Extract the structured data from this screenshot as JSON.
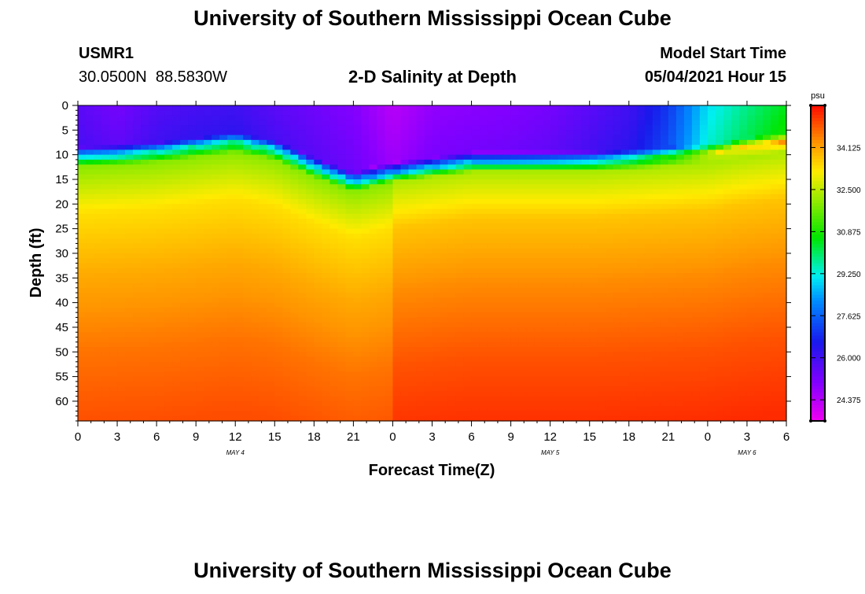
{
  "header": {
    "title": "University of Southern Mississippi Ocean Cube",
    "station_id": "USMR1",
    "station_coords": "30.0500N  88.5830W",
    "plot_title": "2-D Salinity at Depth",
    "model_start_label": "Model Start Time",
    "model_start_value": "05/04/2021 Hour 15"
  },
  "footer": {
    "title": "University of Southern Mississippi Ocean Cube"
  },
  "chart_data": {
    "type": "heatmap",
    "title": "2-D Salinity at Depth",
    "xlabel": "Forecast Time(Z)",
    "ylabel": "Depth (ft)",
    "x_ticks": [
      "0",
      "3",
      "6",
      "9",
      "12",
      "15",
      "18",
      "21",
      "0",
      "3",
      "6",
      "9",
      "12",
      "15",
      "18",
      "21",
      "0",
      "3",
      "6"
    ],
    "x_hours": [
      0,
      3,
      6,
      9,
      12,
      15,
      18,
      21,
      24,
      27,
      30,
      33,
      36,
      39,
      42,
      45,
      48,
      51,
      54
    ],
    "date_labels": [
      {
        "label": "MAY 4",
        "hour": 12
      },
      {
        "label": "MAY 5",
        "hour": 36
      },
      {
        "label": "MAY 6",
        "hour": 51
      }
    ],
    "y_ticks": [
      0,
      5,
      10,
      15,
      20,
      25,
      30,
      35,
      40,
      45,
      50,
      55,
      60
    ],
    "xlim": [
      0,
      54
    ],
    "ylim": [
      64,
      0
    ],
    "colorbar": {
      "unit": "psu",
      "range": [
        23.56,
        35.75
      ],
      "tick_values": [
        24.375,
        26.0,
        27.625,
        29.25,
        30.875,
        32.5,
        34.125
      ],
      "tick_labels": [
        "24.375",
        "26.000",
        "27.625",
        "29.250",
        "30.875",
        "32.500",
        "34.125"
      ]
    },
    "halocline": {
      "hours": [
        0,
        3,
        6,
        9,
        12,
        15,
        18,
        21,
        24,
        27,
        30,
        33,
        36,
        39,
        42,
        45,
        48,
        51,
        54
      ],
      "depth_ft": [
        10,
        9.5,
        9,
        8,
        7,
        8.5,
        12,
        15,
        13,
        12,
        11,
        11,
        11,
        11,
        10.5,
        10,
        9.5,
        8,
        7
      ],
      "surface": [
        25.6,
        25.2,
        25.7,
        25.9,
        26.0,
        25.6,
        25.3,
        25.0,
        24.3,
        24.8,
        24.9,
        25.0,
        25.2,
        25.6,
        26.0,
        27.0,
        29.0,
        29.8,
        30.5
      ]
    },
    "profile": {
      "below_layer_ft": [
        0,
        5,
        12,
        25,
        40,
        55
      ],
      "salinity": [
        31.8,
        32.6,
        33.6,
        34.3,
        34.9,
        35.3
      ]
    }
  }
}
